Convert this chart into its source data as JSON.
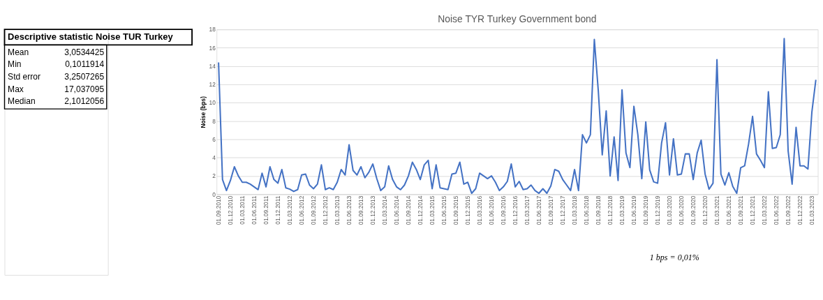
{
  "chart_data": {
    "type": "line",
    "title": "Noise TYR Turkey Government bond",
    "ylabel": "Noise (bps)",
    "categories": [
      "01.09.2010",
      null,
      null,
      "01.12.2010",
      null,
      null,
      "01.03.2011",
      null,
      null,
      "01.06.2011",
      null,
      null,
      "01.09.2011",
      null,
      null,
      "01.12.2011",
      null,
      null,
      "01.03.2012",
      null,
      null,
      "01.06.2012",
      null,
      null,
      "01.09.2012",
      null,
      null,
      "01.12.2012",
      null,
      null,
      "01.03.2013",
      null,
      null,
      "01.06.2013",
      null,
      null,
      "01.09.2013",
      null,
      null,
      "01.12.2013",
      null,
      null,
      "01.03.2014",
      null,
      null,
      "01.06.2014",
      null,
      null,
      "01.09.2014",
      null,
      null,
      "01.12.2014",
      null,
      null,
      "01.03.2015",
      null,
      null,
      "01.06.2015",
      null,
      null,
      "01.09.2015",
      null,
      null,
      "01.12.2015",
      null,
      null,
      "01.03.2016",
      null,
      null,
      "01.06.2016",
      null,
      null,
      "01.09.2016",
      null,
      null,
      "01.12.2016",
      null,
      null,
      "01.03.2017",
      null,
      null,
      "01.06.2017",
      null,
      null,
      "01.09.2017",
      null,
      null,
      "01.12.2017",
      null,
      null,
      "01.03.2018",
      null,
      null,
      "01.06.2018",
      null,
      null,
      "01.09.2018",
      null,
      null,
      "01.12.2018",
      null,
      null,
      "01.03.2019",
      null,
      null,
      "01.06.2019",
      null,
      null,
      "01.09.2019",
      null,
      null,
      "01.12.2019",
      null,
      null,
      "01.03.2020",
      null,
      null,
      "01.06.2020",
      null,
      null,
      "01.09.2020",
      null,
      null,
      "01.12.2020",
      null,
      null,
      "01.03.2021",
      null,
      null,
      "01.06.2021",
      null,
      null,
      "01.09.2021",
      null,
      null,
      "01.12.2021",
      null,
      null,
      "01.03.2022",
      null,
      null,
      "01.06.2022",
      null,
      null,
      "01.09.2022",
      null,
      null,
      "01.12.2022",
      null,
      null,
      "01.03.2023",
      null
    ],
    "series": [
      {
        "color": "#4472c4",
        "values": [
          14.4,
          1.6,
          0.4,
          1.5,
          3.0,
          2.0,
          1.3,
          1.3,
          1.1,
          0.8,
          0.5,
          2.3,
          0.8,
          3.0,
          1.6,
          1.2,
          2.7,
          0.7,
          0.55,
          0.3,
          0.5,
          2.1,
          2.2,
          1.0,
          0.6,
          1.1,
          3.2,
          0.5,
          0.7,
          0.5,
          1.3,
          2.7,
          2.1,
          5.4,
          2.6,
          2.1,
          3.0,
          1.8,
          2.4,
          3.3,
          1.7,
          0.4,
          0.8,
          3.1,
          1.6,
          0.8,
          0.5,
          1.0,
          2.0,
          3.5,
          2.7,
          1.6,
          3.2,
          3.7,
          0.6,
          3.2,
          0.7,
          0.6,
          0.5,
          2.2,
          2.3,
          3.5,
          1.1,
          1.3,
          0.1,
          0.6,
          2.3,
          2.0,
          1.7,
          2.0,
          1.3,
          0.4,
          0.8,
          1.4,
          3.3,
          0.8,
          1.4,
          0.5,
          0.6,
          1.0,
          0.4,
          0.1,
          0.6,
          0.1,
          0.9,
          2.7,
          2.5,
          1.6,
          1.0,
          0.4,
          2.7,
          0.4,
          6.5,
          5.6,
          6.5,
          16.9,
          11.3,
          4.3,
          9.1,
          2.0,
          6.25,
          1.5,
          11.4,
          4.5,
          2.9,
          9.6,
          6.5,
          1.7,
          7.9,
          2.65,
          1.35,
          1.2,
          5.6,
          7.8,
          2.1,
          6.05,
          2.1,
          2.2,
          4.4,
          4.4,
          1.6,
          4.5,
          5.9,
          2.2,
          0.55,
          1.2,
          14.7,
          2.2,
          1.0,
          2.35,
          0.85,
          0.1,
          2.9,
          3.1,
          5.5,
          8.5,
          4.4,
          3.7,
          2.9,
          11.2,
          5.0,
          5.1,
          6.5,
          17.0,
          4.7,
          1.1,
          7.3,
          3.1,
          3.1,
          2.75,
          9.0,
          12.5
        ]
      }
    ],
    "ylim": [
      0,
      18
    ],
    "yticks": [
      0,
      2,
      4,
      6,
      8,
      10,
      12,
      14,
      16,
      18
    ],
    "grid": "y",
    "legend": false,
    "marker": "none",
    "line_style": "solid",
    "annotations": [
      "Descriptive statistic Noise TUR Turkey",
      "Mean",
      "3,0534425",
      "Min",
      "0,1011914",
      "Std error",
      "3,2507265",
      "Max",
      "17,037095",
      "Median",
      "2,1012056",
      "1 bps = 0,01%"
    ]
  }
}
